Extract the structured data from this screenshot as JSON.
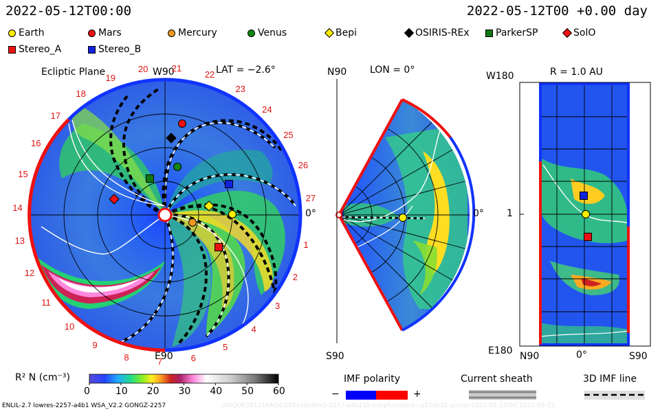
{
  "header": {
    "date_left": "2022-05-12T00:00",
    "date_right": "2022-05-12T00 +0.00 day"
  },
  "legend": [
    {
      "name": "Earth",
      "shape": "circle",
      "color": "#ffee00"
    },
    {
      "name": "Mars",
      "shape": "circle",
      "color": "#ee1111"
    },
    {
      "name": "Mercury",
      "shape": "circle",
      "color": "#ee9922"
    },
    {
      "name": "Venus",
      "shape": "circle",
      "color": "#118811"
    },
    {
      "name": "Bepi",
      "shape": "diamond",
      "color": "#ffee00"
    },
    {
      "name": "OSIRIS-REx",
      "shape": "diamond",
      "color": "#000000"
    },
    {
      "name": "ParkerSP",
      "shape": "square",
      "color": "#117711"
    },
    {
      "name": "SolO",
      "shape": "diamond",
      "color": "#ee1111"
    },
    {
      "name": "Stereo_A",
      "shape": "square",
      "color": "#ee1111"
    },
    {
      "name": "Stereo_B",
      "shape": "square",
      "color": "#1122dd"
    }
  ],
  "panels": {
    "ecliptic": {
      "title": "Ecliptic Plane",
      "top_label": "W90",
      "bottom_label": "E90",
      "right_label": "0°",
      "lat": "LAT = −2.6°",
      "carrington_ticks": [
        "1",
        "2",
        "3",
        "4",
        "5",
        "6",
        "7",
        "8",
        "9",
        "10",
        "11",
        "12",
        "13",
        "14",
        "15",
        "16",
        "17",
        "18",
        "19",
        "20",
        "21",
        "22",
        "23",
        "24",
        "25",
        "26",
        "27"
      ]
    },
    "meridional": {
      "top_label": "N90",
      "lon": "LON = 0°",
      "bottom_label": "S90",
      "right_label": "0°"
    },
    "sphere": {
      "title": "R = 1.0 AU",
      "top_left": "W180",
      "bottom_left": "E180",
      "left_mid": "1",
      "x_labels": [
        "N90",
        "0°",
        "S90"
      ]
    }
  },
  "colorbar": {
    "label": "R² N (cm⁻³)",
    "ticks": [
      "0",
      "10",
      "20",
      "30",
      "40",
      "50",
      "60"
    ]
  },
  "imf_polarity": {
    "title": "IMF polarity",
    "minus": "−",
    "plus": "+",
    "neg_color": "#0000ff",
    "pos_color": "#ff0000"
  },
  "current_sheath": {
    "title": "Current sheath"
  },
  "imf_line": {
    "title": "3D IMF line"
  },
  "footer": {
    "left": "ENLIL-2.7 lowres-2257-a4b1 WSA_V2.2 GONGZ-2257",
    "right": "UNIQUE3813164O4/258x30x90x1-2257-a4b135-nocpfunnelcd-l,g53q5d2.gongz-2022-05-12t00   2022-05-12"
  },
  "chart_data": {
    "type": "heatmap",
    "title": "Ecliptic Plane",
    "quantity": "R² N (cm⁻³)",
    "color_range": [
      0,
      60
    ],
    "bodies": [
      "Earth",
      "Mars",
      "Mercury",
      "Venus",
      "Bepi",
      "OSIRIS-REx",
      "ParkerSP",
      "SolO",
      "Stereo_A",
      "Stereo_B"
    ],
    "latitude_deg": -2.6,
    "longitude_deg": 0,
    "radius_au": 1.0,
    "elapsed_days": 0.0
  }
}
